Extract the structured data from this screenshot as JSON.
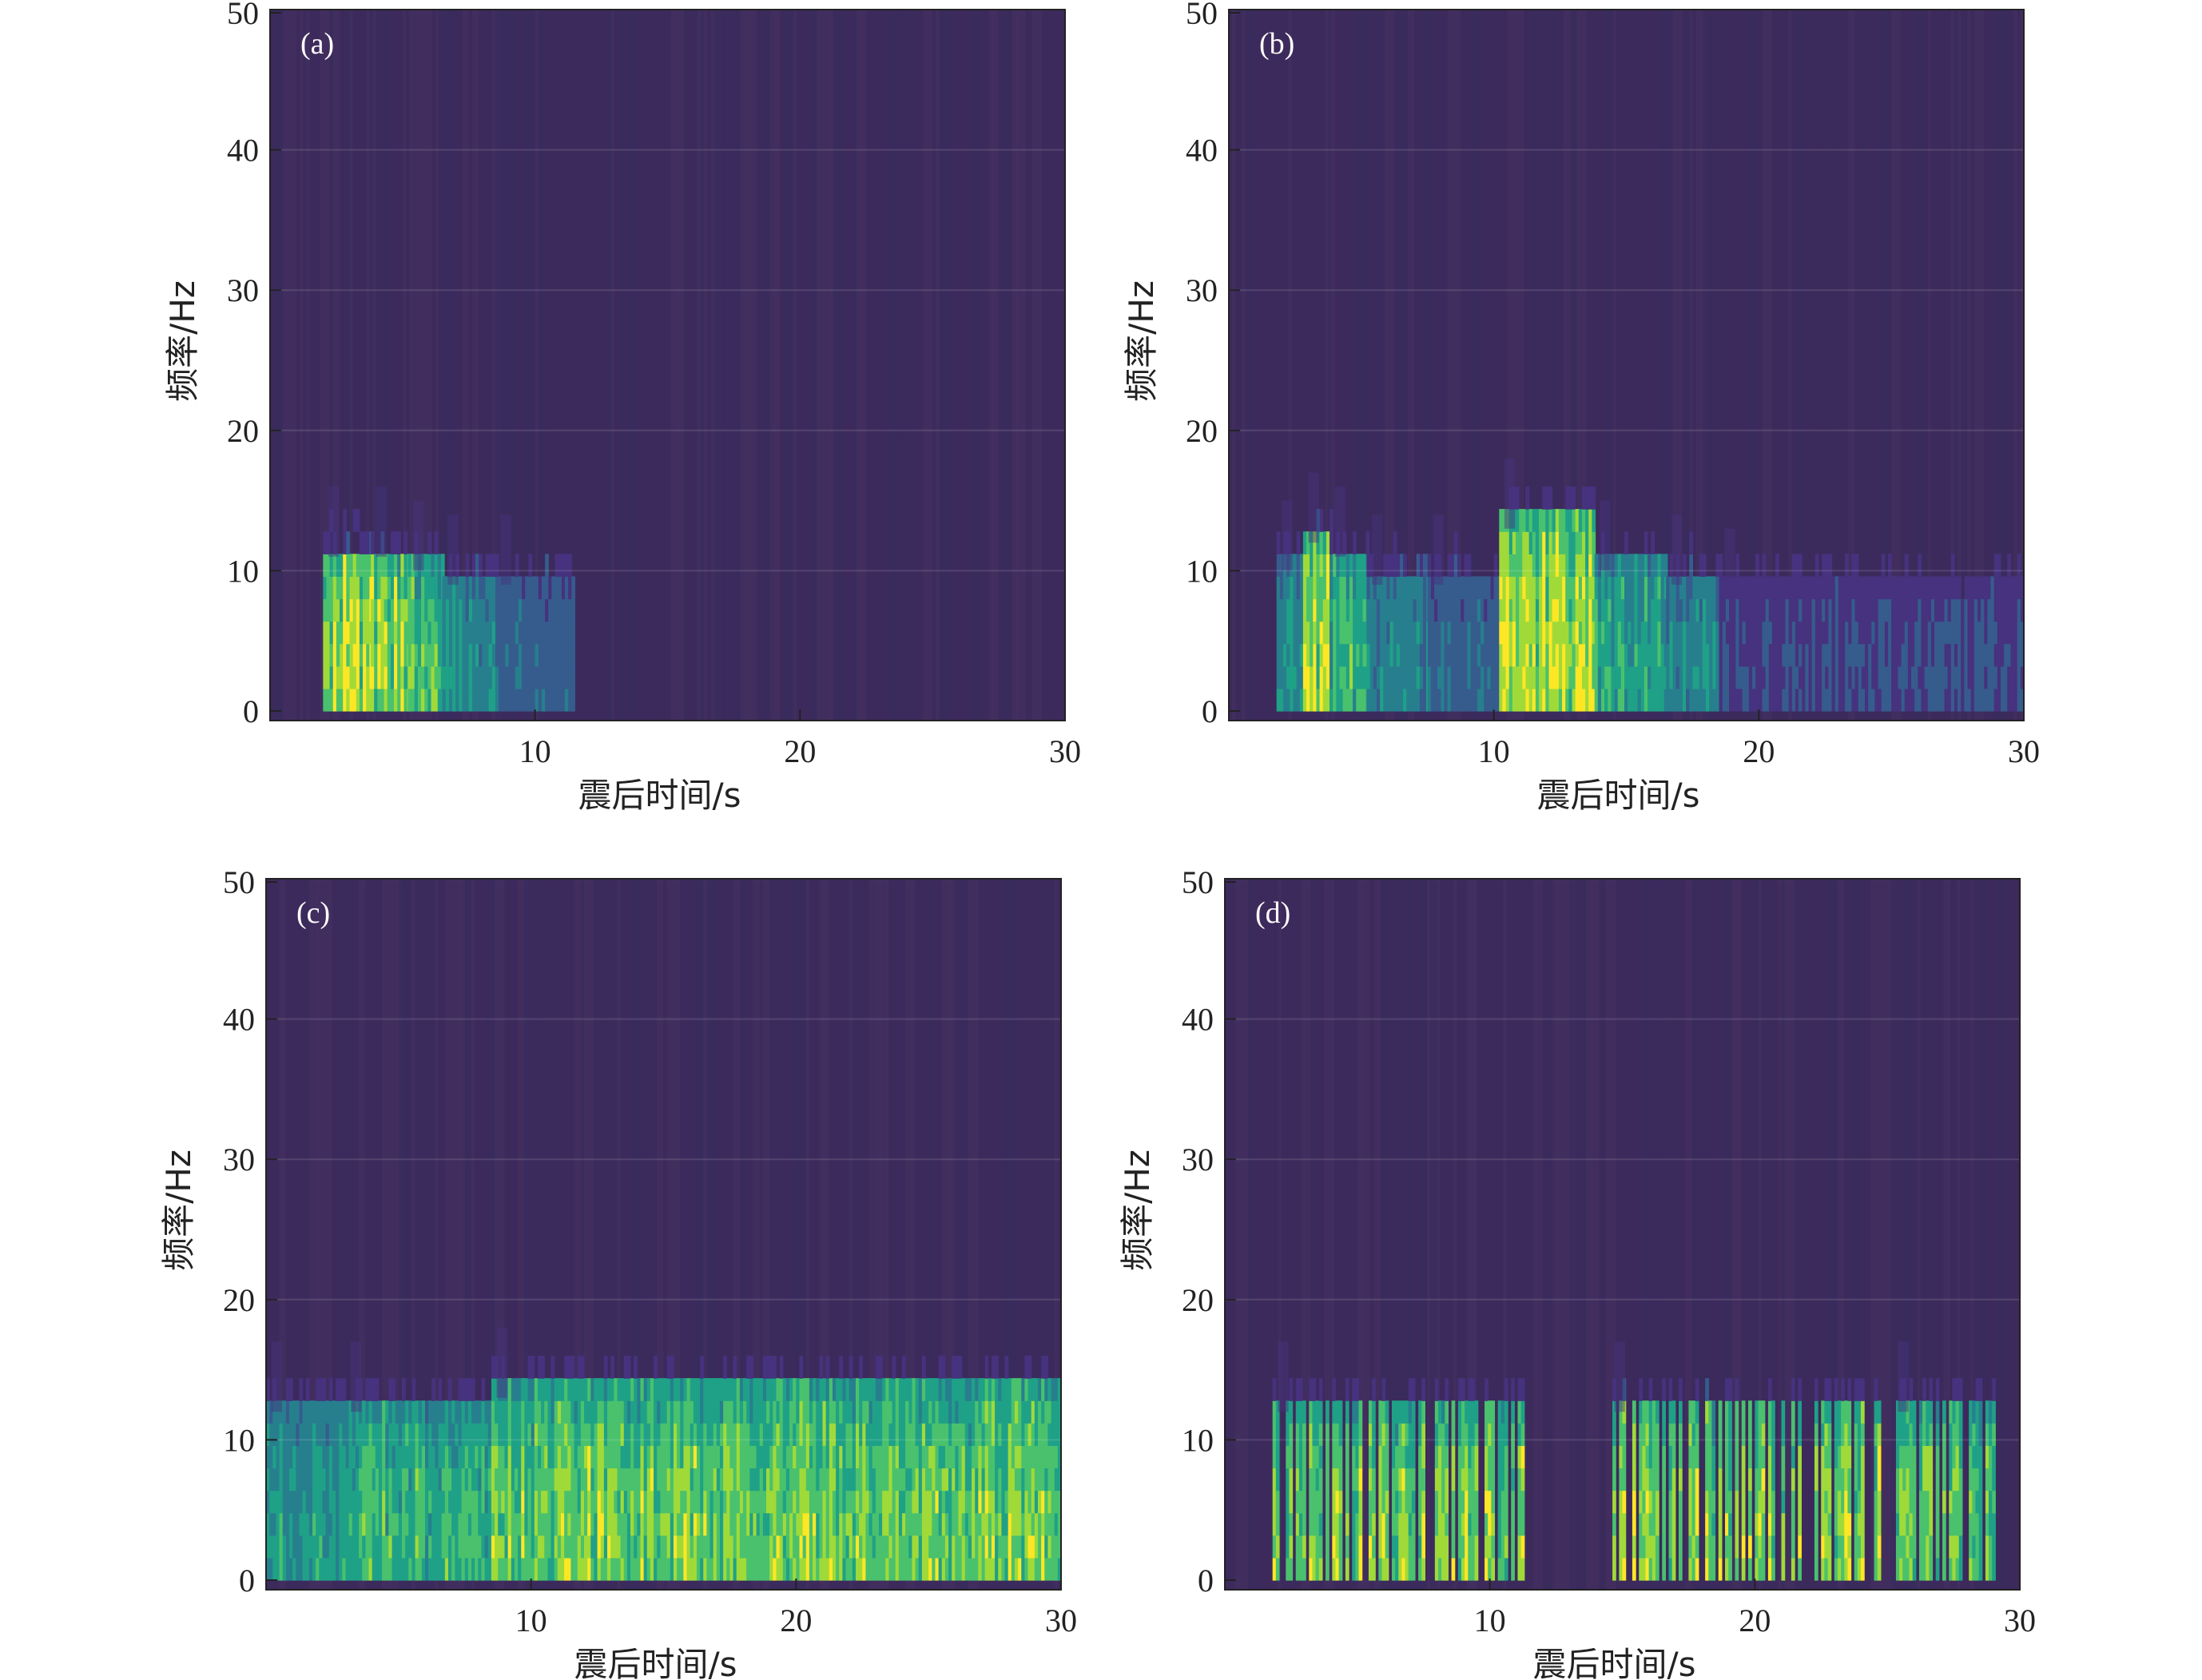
{
  "figure": {
    "colormap": [
      "#3d2a5c",
      "#46327e",
      "#365c8d",
      "#277f8e",
      "#1fa187",
      "#4ac16d",
      "#a0da39",
      "#fde725"
    ],
    "background_color": "#3d2a5c",
    "band_colors": [
      "#3a2c5e",
      "#42305f"
    ]
  },
  "chart_data": [
    {
      "type": "heatmap",
      "panel_label": "(a)",
      "xlabel": "震后时间/s",
      "ylabel": "频率/Hz",
      "xlim": [
        0,
        30
      ],
      "ylim": [
        0,
        50
      ],
      "xticks": [
        "10",
        "20",
        "30"
      ],
      "yticks": [
        "0",
        "10",
        "20",
        "30",
        "40",
        "50"
      ],
      "segments": [
        {
          "t0": 2.0,
          "t1": 3.8,
          "level": 0.98,
          "fmax": 11
        },
        {
          "t0": 3.8,
          "t1": 5.2,
          "level": 0.88,
          "fmax": 11
        },
        {
          "t0": 5.2,
          "t1": 6.5,
          "level": 0.78,
          "fmax": 10
        },
        {
          "t0": 6.5,
          "t1": 8.5,
          "level": 0.55,
          "fmax": 9
        },
        {
          "t0": 8.5,
          "t1": 11.5,
          "level": 0.35,
          "fmax": 9
        }
      ]
    },
    {
      "type": "heatmap",
      "panel_label": "(b)",
      "xlabel": "震后时间/s",
      "ylabel": "频率/Hz",
      "xlim": [
        0,
        30
      ],
      "ylim": [
        0,
        50
      ],
      "xticks": [
        "10",
        "20",
        "30"
      ],
      "yticks": [
        "0",
        "10",
        "20",
        "30",
        "40",
        "50"
      ],
      "segments": [
        {
          "t0": 1.8,
          "t1": 2.8,
          "level": 0.55,
          "fmax": 10
        },
        {
          "t0": 2.8,
          "t1": 3.8,
          "level": 0.97,
          "fmax": 12
        },
        {
          "t0": 3.8,
          "t1": 5.2,
          "level": 0.7,
          "fmax": 11
        },
        {
          "t0": 5.2,
          "t1": 7.5,
          "level": 0.5,
          "fmax": 9
        },
        {
          "t0": 7.5,
          "t1": 10.2,
          "level": 0.35,
          "fmax": 9
        },
        {
          "t0": 10.2,
          "t1": 13.8,
          "level": 0.97,
          "fmax": 13
        },
        {
          "t0": 13.8,
          "t1": 16.5,
          "level": 0.65,
          "fmax": 10
        },
        {
          "t0": 16.5,
          "t1": 18.5,
          "level": 0.5,
          "fmax": 9
        },
        {
          "t0": 18.5,
          "t1": 30.0,
          "level": 0.25,
          "fmax": 8
        }
      ]
    },
    {
      "type": "heatmap",
      "panel_label": "(c)",
      "xlabel": "震后时间/s",
      "ylabel": "频率/Hz",
      "xlim": [
        0,
        30
      ],
      "ylim": [
        0,
        50
      ],
      "xticks": [
        "10",
        "20",
        "30"
      ],
      "yticks": [
        "0",
        "10",
        "20",
        "30",
        "40",
        "50"
      ],
      "segments": [
        {
          "t0": 0.0,
          "t1": 3.0,
          "level": 0.6,
          "fmax": 12
        },
        {
          "t0": 3.0,
          "t1": 8.5,
          "level": 0.72,
          "fmax": 12
        },
        {
          "t0": 8.5,
          "t1": 30.0,
          "level": 0.85,
          "fmax": 13
        }
      ]
    },
    {
      "type": "heatmap",
      "panel_label": "(d)",
      "xlabel": "震后时间/s",
      "ylabel": "频率/Hz",
      "xlim": [
        0,
        30
      ],
      "ylim": [
        0,
        50
      ],
      "xticks": [
        "10",
        "20",
        "30"
      ],
      "yticks": [
        "0",
        "10",
        "20",
        "30",
        "40",
        "50"
      ],
      "segments": [
        {
          "t0": 1.8,
          "t1": 11.5,
          "level": 0.88,
          "fmax": 12,
          "striped": true
        },
        {
          "t0": 14.5,
          "t1": 24.8,
          "level": 0.88,
          "fmax": 12,
          "striped": true
        },
        {
          "t0": 25.2,
          "t1": 29.0,
          "level": 0.8,
          "fmax": 12,
          "striped": true
        }
      ]
    }
  ]
}
